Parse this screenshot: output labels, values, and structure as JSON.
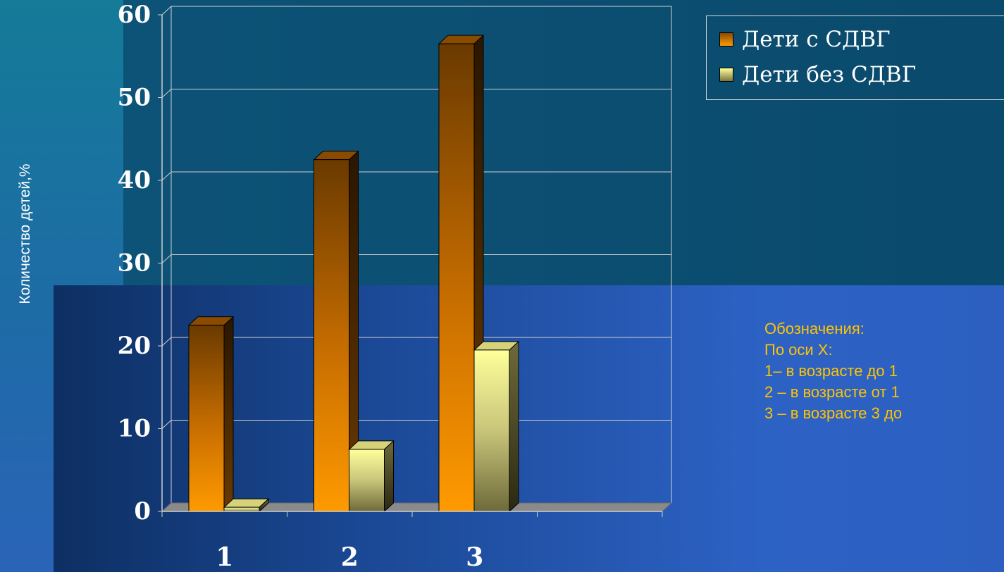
{
  "chart_data": {
    "type": "bar",
    "ylabel": "Количество детей,%",
    "ylim": [
      0,
      60
    ],
    "yticks": [
      0,
      10,
      20,
      30,
      40,
      50,
      60
    ],
    "categories": [
      "1",
      "2",
      "3"
    ],
    "grid": true,
    "legend_position": "top-right",
    "series": [
      {
        "name": "Дети с СДВГ",
        "values": [
          22.5,
          42.5,
          56.5
        ],
        "color": "#f08a00"
      },
      {
        "name": "Дети без СДВГ",
        "values": [
          0.5,
          7.5,
          19.5
        ],
        "color": "#e6e29a"
      }
    ]
  },
  "notes": {
    "title": "Обозначения:",
    "axis": "По оси X:",
    "items": [
      "1– в возрасте до 1",
      "2 – в возрасте от 1",
      "3 – в возрасте 3 до"
    ]
  }
}
